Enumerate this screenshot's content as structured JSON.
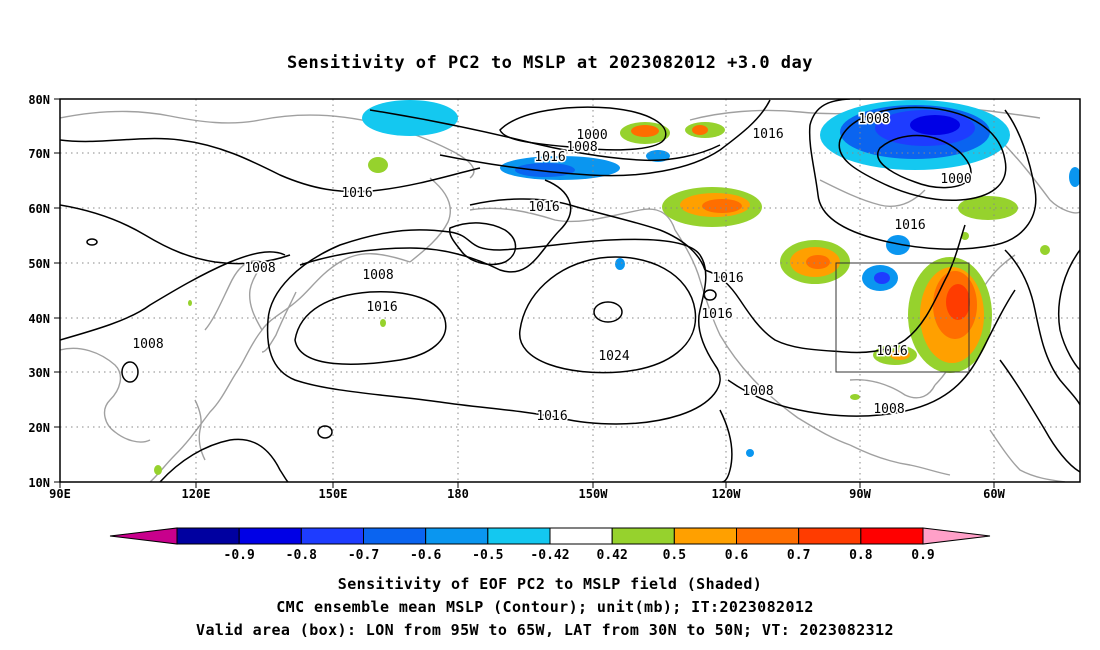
{
  "title": "Sensitivity of PC2 to MSLP at 2023082012 +3.0 day",
  "map": {
    "lon_labels": [
      "90E",
      "120E",
      "150E",
      "180",
      "150W",
      "120W",
      "90W",
      "60W"
    ],
    "lat_labels": [
      "80N",
      "70N",
      "60N",
      "50N",
      "40N",
      "30N",
      "20N",
      "10N"
    ],
    "lon_range": [
      "90E",
      "40W"
    ],
    "lat_range": [
      "10N",
      "80N"
    ],
    "grid": "dotted",
    "coastline_color": "#a0a0a0",
    "valid_box": {
      "lon_west": "95W",
      "lon_east": "65W",
      "lat_south": "30N",
      "lat_north": "50N"
    }
  },
  "contours": {
    "labels": [
      "1000",
      "1008",
      "1016",
      "1016",
      "1016",
      "1008",
      "1000",
      "1016",
      "1016",
      "1008",
      "1008",
      "1016",
      "1008",
      "1024",
      "1016",
      "1016",
      "1016",
      "1008",
      "1016",
      "1008"
    ]
  },
  "colorbar": {
    "tick_labels": [
      "-0.9",
      "-0.8",
      "-0.7",
      "-0.6",
      "-0.5",
      "-0.42",
      "0.42",
      "0.5",
      "0.6",
      "0.7",
      "0.8",
      "0.9"
    ],
    "colors": [
      "#c8008c",
      "#0000a0",
      "#0000e6",
      "#1e3cff",
      "#0a64f0",
      "#0a96f0",
      "#14c8f0",
      "#ffffff",
      "#96d22d",
      "#ffa000",
      "#ff6e00",
      "#ff3c00",
      "#ff0000",
      "#ffa0c8"
    ]
  },
  "caption": {
    "line1": "Sensitivity of EOF PC2 to MSLP field (Shaded)",
    "line2": "CMC ensemble mean MSLP (Contour); unit(mb); IT:2023082012",
    "line3": "Valid area (box): LON from 95W to 65W, LAT from 30N to 50N; VT: 2023082312"
  }
}
